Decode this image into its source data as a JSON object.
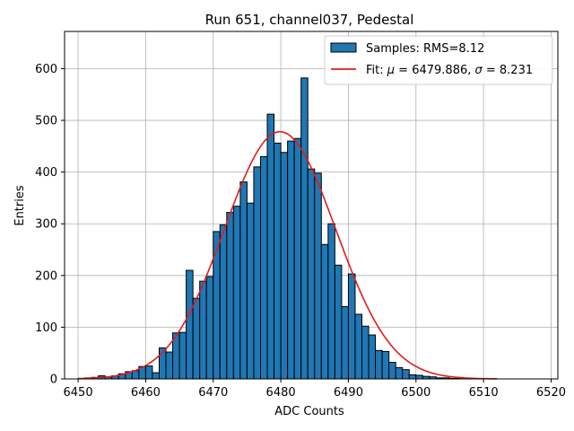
{
  "chart_data": {
    "type": "bar",
    "title": "Run 651, channel037, Pedestal",
    "xlabel": "ADC Counts",
    "ylabel": "Entries",
    "xlim": [
      6448,
      6521
    ],
    "ylim": [
      0,
      672
    ],
    "grid": true,
    "xticks": [
      6450,
      6460,
      6470,
      6480,
      6490,
      6500,
      6510,
      6520
    ],
    "yticks": [
      0,
      100,
      200,
      300,
      400,
      500,
      600
    ],
    "bin_width": 1,
    "bins": {
      "x": [
        6450,
        6451,
        6452,
        6453,
        6454,
        6455,
        6456,
        6457,
        6458,
        6459,
        6460,
        6461,
        6462,
        6463,
        6464,
        6465,
        6466,
        6467,
        6468,
        6469,
        6470,
        6471,
        6472,
        6473,
        6474,
        6475,
        6476,
        6477,
        6478,
        6479,
        6480,
        6481,
        6482,
        6483,
        6484,
        6485,
        6486,
        6487,
        6488,
        6489,
        6490,
        6491,
        6492,
        6493,
        6494,
        6495,
        6496,
        6497,
        6498,
        6499,
        6500,
        6501,
        6502,
        6503,
        6504,
        6505,
        6506,
        6507,
        6508,
        6509,
        6510,
        6511
      ],
      "counts": [
        1,
        2,
        3,
        6,
        4,
        6,
        10,
        14,
        16,
        24,
        25,
        12,
        60,
        52,
        89,
        90,
        210,
        156,
        189,
        198,
        285,
        298,
        322,
        334,
        381,
        340,
        410,
        430,
        512,
        456,
        438,
        460,
        465,
        582,
        406,
        398,
        260,
        300,
        220,
        140,
        203,
        125,
        102,
        85,
        55,
        53,
        32,
        22,
        18,
        8,
        7,
        5,
        4,
        2,
        2,
        1,
        1,
        1,
        0,
        0,
        0,
        0
      ]
    },
    "fit": {
      "mu": 6479.886,
      "sigma": 8.231,
      "amplitude": 478,
      "x_range": [
        6450,
        6512
      ]
    },
    "legend": {
      "position": "top-right",
      "samples_label": "Samples: RMS=8.12",
      "fit_label_prefix": "Fit: ",
      "fit_mu_symbol": "μ",
      "fit_mu_value": " = 6479.886, ",
      "fit_sigma_symbol": "σ",
      "fit_sigma_value": " = 8.231"
    },
    "colors": {
      "bar_fill": "#1f77b4",
      "bar_edge": "#000000",
      "fit_line": "#e41a1c",
      "grid": "#b0b0b0"
    }
  }
}
